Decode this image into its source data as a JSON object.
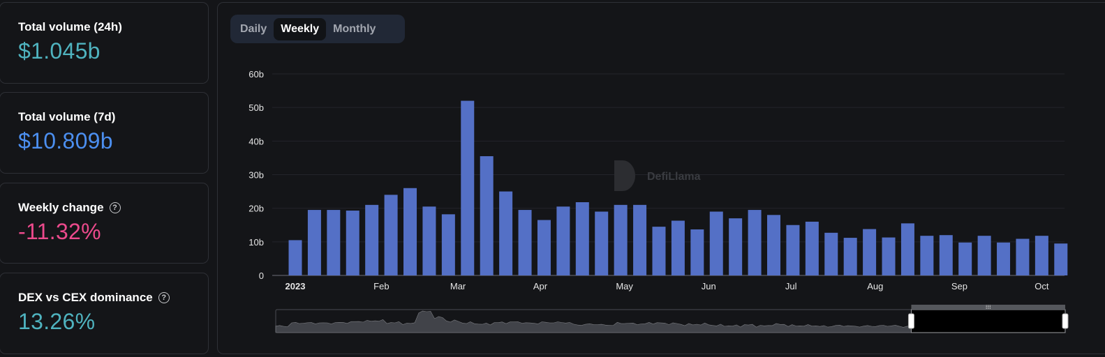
{
  "stats": [
    {
      "label": "Total volume (24h)",
      "value": "$1.045b",
      "color": "#4fb3bf",
      "help": false
    },
    {
      "label": "Total volume (7d)",
      "value": "$10.809b",
      "color": "#4c8ff0",
      "help": false
    },
    {
      "label": "Weekly change",
      "value": "-11.32%",
      "color": "#ec4a8c",
      "help": true
    },
    {
      "label": "DEX vs CEX dominance",
      "value": "13.26%",
      "color": "#4fb3bf",
      "help": true
    }
  ],
  "help_icon": "question-circle-icon",
  "toggle": {
    "options": [
      "Daily",
      "Weekly",
      "Monthly"
    ],
    "selected": "Weekly"
  },
  "watermark": "DefiLlama",
  "colors": {
    "bar": "#5470c6",
    "background": "#141518",
    "grid": "#23252b",
    "accent_toggle": "#212836"
  },
  "chart_data": {
    "type": "bar",
    "title": "",
    "xlabel": "",
    "ylabel": "",
    "ylim": [
      0,
      60
    ],
    "y_unit": "b",
    "y_ticks": [
      "0",
      "10b",
      "20b",
      "30b",
      "40b",
      "50b",
      "60b"
    ],
    "x_ticks": [
      {
        "label": "2023",
        "bold": true,
        "bar_index": 0
      },
      {
        "label": "Feb",
        "bar_index": 4.5
      },
      {
        "label": "Mar",
        "bar_index": 8.5
      },
      {
        "label": "Apr",
        "bar_index": 12.8
      },
      {
        "label": "May",
        "bar_index": 17.2
      },
      {
        "label": "Jun",
        "bar_index": 21.6
      },
      {
        "label": "Jul",
        "bar_index": 25.9
      },
      {
        "label": "Aug",
        "bar_index": 30.3
      },
      {
        "label": "Sep",
        "bar_index": 34.7
      },
      {
        "label": "Oct",
        "bar_index": 39.0
      }
    ],
    "grid": true,
    "series": [
      {
        "values": [
          10.5,
          19.5,
          19.5,
          19.3,
          21.0,
          24.0,
          26.0,
          20.5,
          18.2,
          52.0,
          35.5,
          25.0,
          19.5,
          16.5,
          20.5,
          21.8,
          19.0,
          21.0,
          21.0,
          14.5,
          16.3,
          13.7,
          19.0,
          17.0,
          19.5,
          18.0,
          15.0,
          16.0,
          12.7,
          11.2,
          13.8,
          11.3,
          15.5,
          11.8,
          12.0,
          9.8,
          11.8,
          9.8,
          10.9,
          11.8,
          9.5
        ]
      }
    ],
    "zoom_window": {
      "start_fraction": 0.0,
      "end_fraction": 0.805
    }
  }
}
